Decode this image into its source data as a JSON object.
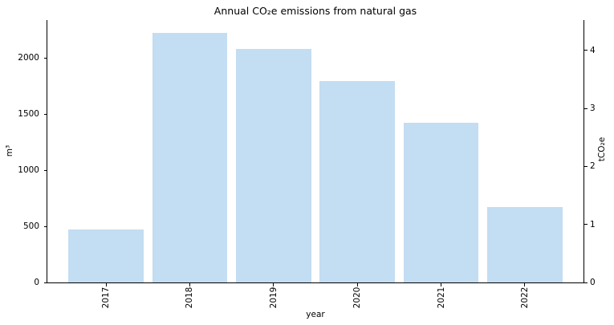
{
  "chart_data": {
    "type": "bar",
    "title": "Annual CO₂e emissions from natural gas",
    "xlabel": "year",
    "ylabel_left": "m³",
    "ylabel_right": "tCO₂e",
    "categories": [
      "2017",
      "2018",
      "2019",
      "2020",
      "2021",
      "2022"
    ],
    "series": [
      {
        "name": "m³",
        "axis": "left",
        "values": [
          470,
          2220,
          2080,
          1795,
          1420,
          672
        ]
      },
      {
        "name": "tCO₂e",
        "axis": "right",
        "values": [
          0.91,
          4.3,
          4.02,
          3.47,
          2.75,
          1.3
        ]
      }
    ],
    "yticks_left": [
      0,
      500,
      1000,
      1500,
      2000
    ],
    "yticks_right": [
      0,
      1,
      2,
      3,
      4
    ],
    "ylim_left": [
      0,
      2336
    ],
    "ylim_right": [
      0,
      4.52
    ],
    "xlim": [
      -0.7,
      5.7
    ],
    "bar_width_fraction": 0.9,
    "x_tick_rotation_deg": 90,
    "grid": false,
    "legend": "none",
    "bar_color": "#c3ddf2",
    "axis_color": "#000000",
    "background_color": "#ffffff"
  }
}
